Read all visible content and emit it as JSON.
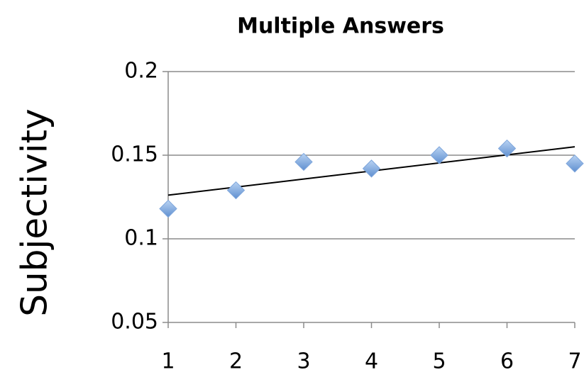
{
  "chart_data": {
    "type": "scatter",
    "title": "Multiple Answers",
    "y_label": "Subjectivity",
    "x": [
      1,
      2,
      3,
      4,
      5,
      6,
      7
    ],
    "values": [
      0.118,
      0.129,
      0.146,
      0.142,
      0.15,
      0.154,
      0.145
    ],
    "color": "#7ea6dc",
    "trendline": "linear",
    "xlim": [
      1,
      7
    ],
    "xticks": [
      1,
      2,
      3,
      4,
      5,
      6,
      7
    ],
    "ylim": [
      0.05,
      0.2
    ],
    "yticks": [
      0.05,
      0.1,
      0.15,
      0.2
    ],
    "grid": true
  }
}
